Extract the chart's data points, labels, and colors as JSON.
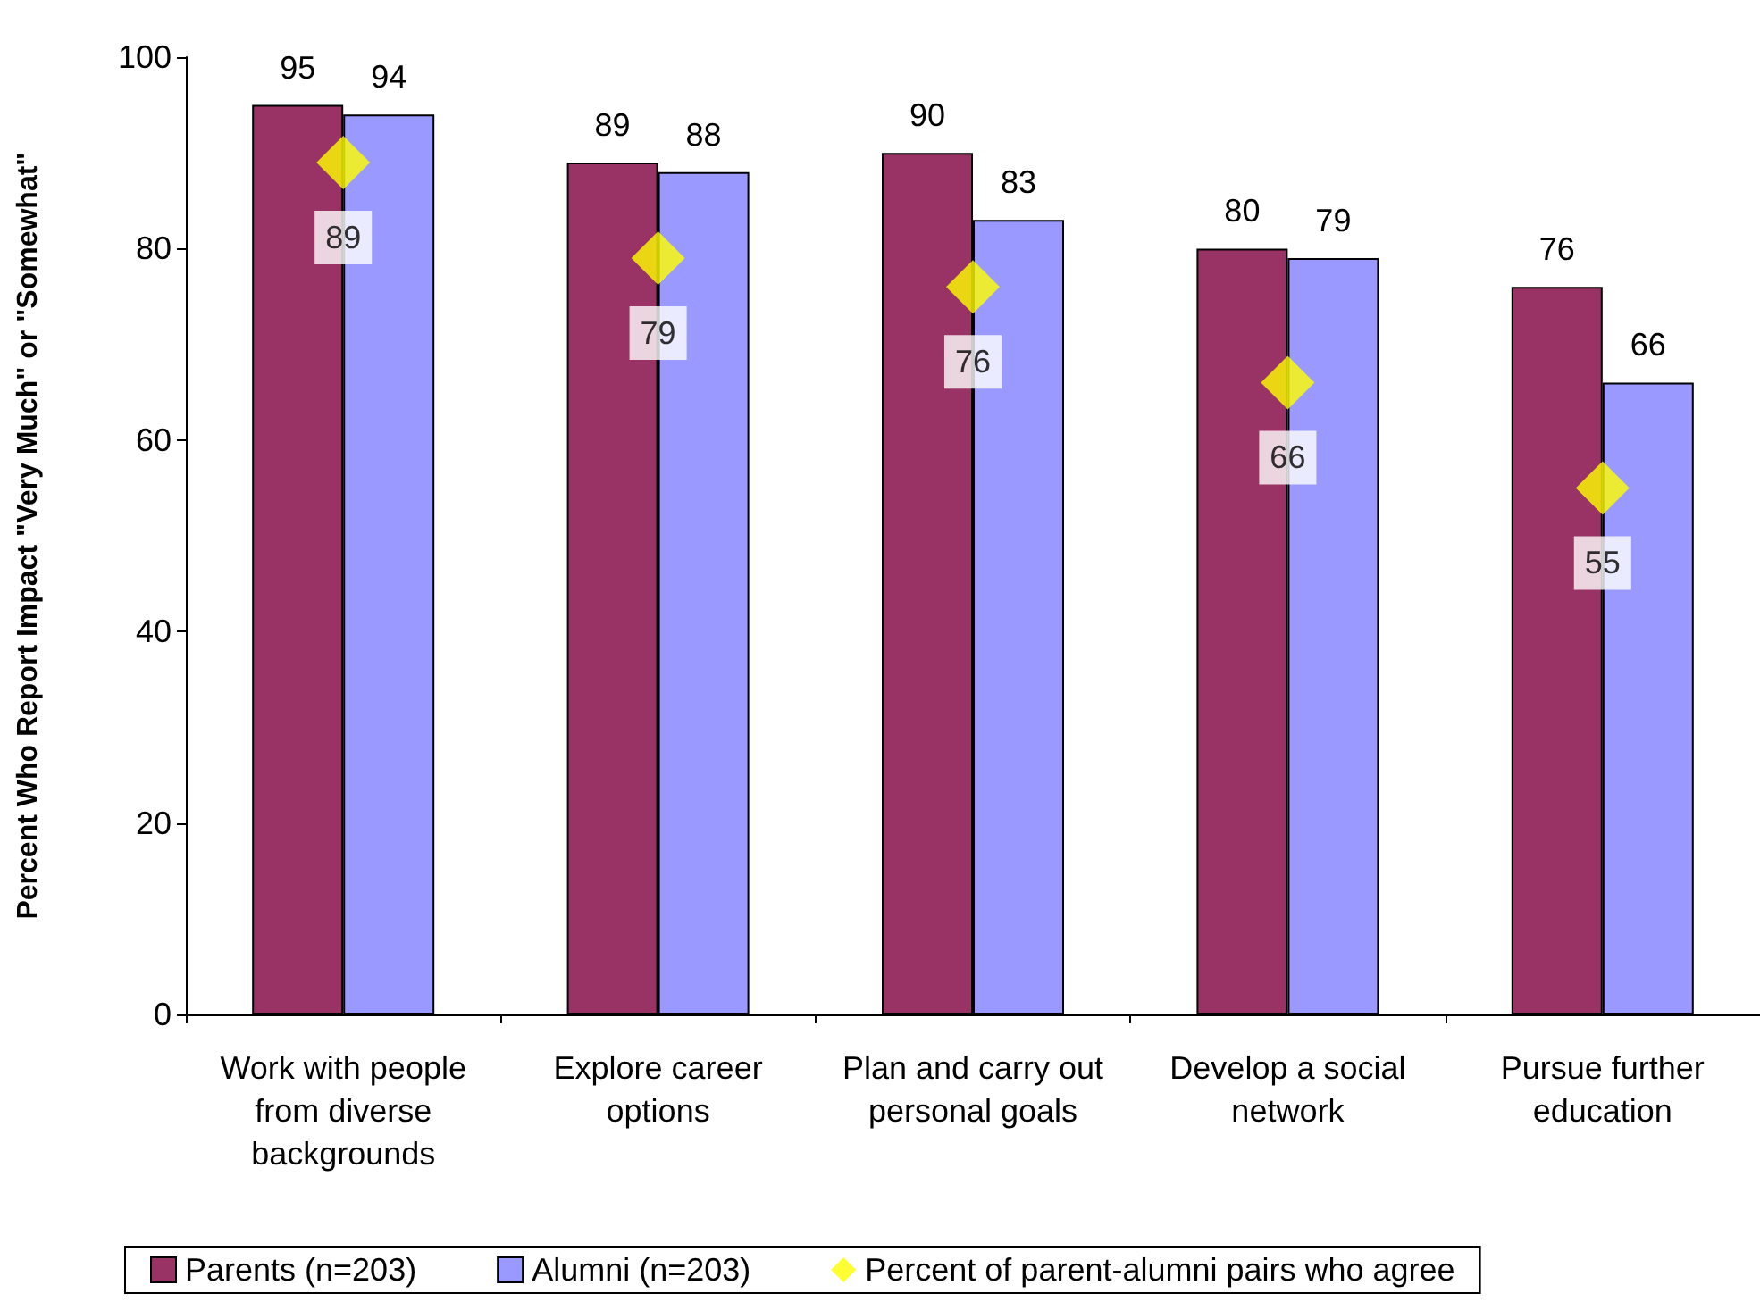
{
  "chart_data": {
    "type": "bar",
    "ylabel": "Percent Who Report Impact \"Very Much\" or \"Somewhat\"",
    "categories": [
      "Work with people from diverse backgrounds",
      "Explore career options",
      "Plan and carry out personal goals",
      "Develop a social network",
      "Pursue further education"
    ],
    "series": [
      {
        "name": "Parents (n=203)",
        "color": "#993366",
        "values": [
          95,
          89,
          90,
          80,
          76
        ]
      },
      {
        "name": "Alumni (n=203)",
        "color": "#9999ff",
        "values": [
          94,
          88,
          83,
          79,
          66
        ]
      },
      {
        "name": "Percent of parent-alumni pairs who agree",
        "type": "scatter",
        "color": "#ffff00",
        "x": [
          "Work with people from diverse backgrounds",
          "Explore career options",
          "Plan and carry out personal goals",
          "Develop a social network",
          "Pursue further education"
        ],
        "values": [
          89,
          79,
          76,
          66,
          55
        ]
      }
    ],
    "ylim": [
      0,
      100
    ],
    "yticks": [
      0,
      20,
      40,
      60,
      80,
      100
    ],
    "grid": false,
    "legend": "bottom",
    "marker": "diamond",
    "data_labels": true
  }
}
